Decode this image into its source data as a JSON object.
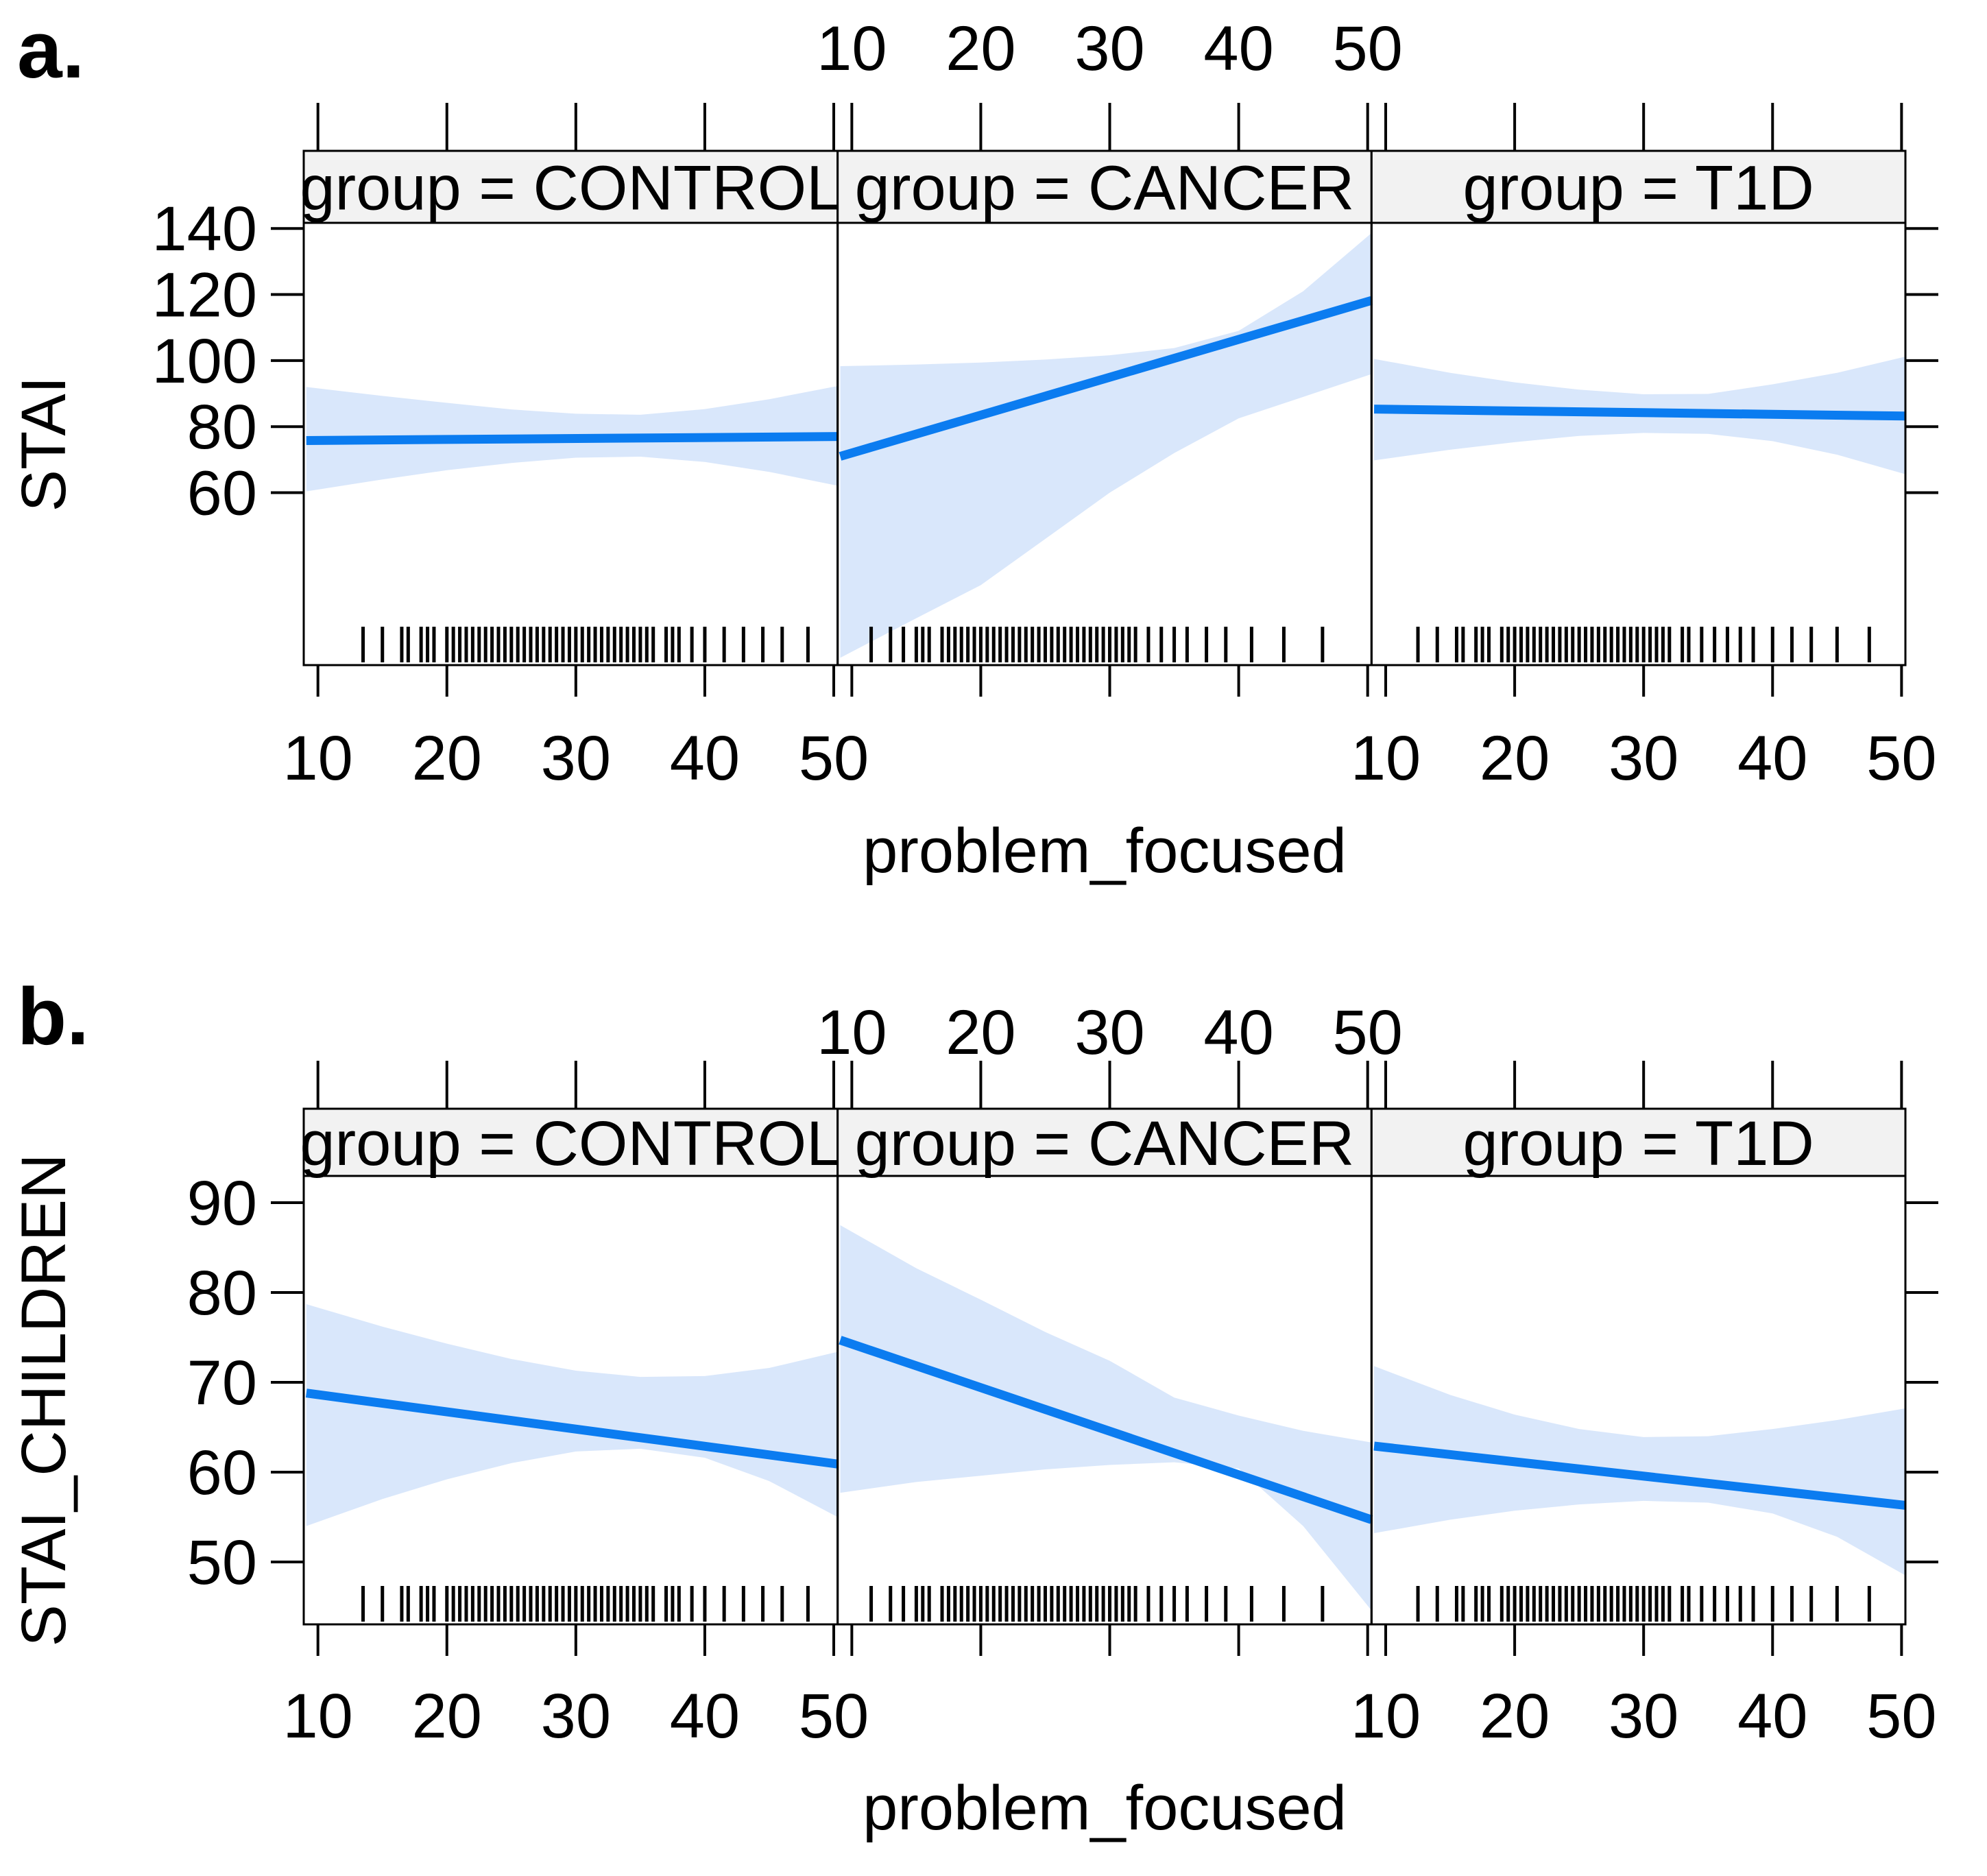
{
  "page": {
    "figure_a_label": "a.",
    "figure_b_label": "b."
  },
  "colors": {
    "line": "#0b7cf0",
    "band": "#d9e7fb",
    "strip_bg": "#f2f2f2",
    "border": "#000000",
    "text": "#000000"
  },
  "rugs": {
    "CONTROL": [
      13.5,
      15,
      16.5,
      17,
      18,
      18.5,
      19,
      20,
      20.5,
      21,
      21.5,
      22,
      22.5,
      23,
      23.5,
      24,
      24.5,
      25,
      25.5,
      26,
      26.5,
      27,
      27.5,
      28,
      28.5,
      29,
      29.5,
      30,
      30.5,
      31,
      31.5,
      32,
      32.5,
      33,
      33.5,
      34,
      34.5,
      35,
      35.5,
      36,
      37,
      37.5,
      38,
      39,
      40,
      41.5,
      43,
      44.5,
      46,
      48
    ],
    "CANCER": [
      11.5,
      13,
      14,
      15,
      15.5,
      16,
      17,
      17.5,
      18,
      18.5,
      19,
      19.5,
      20,
      20.5,
      21,
      21.5,
      22,
      22.5,
      23,
      23.5,
      24,
      24.5,
      25,
      25.5,
      26,
      26.5,
      27,
      27.5,
      28,
      28.5,
      29,
      29.5,
      30,
      30.5,
      31,
      31.5,
      32,
      33,
      34,
      35,
      36,
      37.5,
      39,
      41,
      43.5,
      46.5
    ],
    "T1D": [
      12.5,
      14,
      15.5,
      16,
      17,
      17.5,
      18,
      19,
      19.5,
      20,
      20.5,
      21,
      21.5,
      22,
      22.5,
      23,
      23.5,
      24,
      24.5,
      25,
      25.5,
      26,
      26.5,
      27,
      27.5,
      28,
      28.5,
      29,
      29.5,
      30,
      30.5,
      31,
      31.5,
      32,
      33,
      33.5,
      34.5,
      35.5,
      36.5,
      37.5,
      38.5,
      40,
      41.5,
      43,
      45,
      47.5
    ]
  },
  "chart_data": [
    {
      "type": "line",
      "panel_label": "a.",
      "ylabel": "STAI",
      "xlabel": "problem_focused",
      "y_ticks": [
        60,
        80,
        100,
        120,
        140
      ],
      "x_ticks": [
        10,
        20,
        30,
        40,
        50
      ],
      "ylim": [
        7.8,
        141.7
      ],
      "xlim": [
        8.9,
        50.3
      ],
      "grid": false,
      "legend": "none",
      "facets": [
        {
          "label": "group = CONTROL",
          "x_axis_labels": "bottom",
          "rug": "CONTROL",
          "line": {
            "x": [
              9.1,
              50.3
            ],
            "y": [
              75.8,
              77.0
            ]
          },
          "band": {
            "x": [
              9.1,
              15,
              20,
              25,
              30,
              35,
              40,
              45,
              50.3
            ],
            "upper": [
              92.0,
              89.3,
              87.2,
              85.2,
              83.9,
              83.6,
              85.3,
              88.3,
              92.3
            ],
            "lower": [
              60.4,
              64.0,
              66.8,
              69.0,
              70.6,
              70.9,
              69.3,
              66.3,
              62.1
            ]
          }
        },
        {
          "label": "group = CANCER",
          "x_axis_labels": "top",
          "rug": "CANCER",
          "line": {
            "x": [
              9.1,
              50.3
            ],
            "y": [
              71.0,
              118.2
            ]
          },
          "band": {
            "x": [
              9.1,
              15,
              20,
              25,
              30,
              35,
              40,
              45,
              50.3
            ],
            "upper": [
              98.3,
              98.8,
              99.4,
              100.3,
              101.6,
              103.8,
              109.0,
              121.0,
              138.6
            ],
            "lower": [
              10.0,
              22.0,
              32.0,
              46.0,
              60.0,
              72.0,
              82.5,
              89.0,
              95.9
            ]
          }
        },
        {
          "label": "group = T1D",
          "x_axis_labels": "bottom",
          "rug": "T1D",
          "line": {
            "x": [
              9.1,
              50.3
            ],
            "y": [
              85.3,
              83.2
            ]
          },
          "band": {
            "x": [
              9.1,
              15,
              20,
              25,
              30,
              35,
              40,
              45,
              50.3
            ],
            "upper": [
              100.5,
              96.3,
              93.4,
              91.2,
              89.8,
              89.9,
              92.8,
              96.3,
              101.2
            ],
            "lower": [
              69.8,
              73.0,
              75.3,
              77.2,
              78.1,
              77.8,
              75.6,
              71.5,
              65.6
            ]
          }
        }
      ]
    },
    {
      "type": "line",
      "panel_label": "b.",
      "ylabel": "STAI_CHILDREN",
      "xlabel": "problem_focused",
      "y_ticks": [
        50,
        60,
        70,
        80,
        90
      ],
      "x_ticks": [
        10,
        20,
        30,
        40,
        50
      ],
      "ylim": [
        43.05,
        92.98
      ],
      "xlim": [
        8.9,
        50.3
      ],
      "grid": false,
      "legend": "none",
      "facets": [
        {
          "label": "group = CONTROL",
          "x_axis_labels": "bottom",
          "rug": "CONTROL",
          "line": {
            "x": [
              9.1,
              50.3
            ],
            "y": [
              68.8,
              60.9
            ]
          },
          "band": {
            "x": [
              9.1,
              15,
              20,
              25,
              30,
              35,
              40,
              45,
              50.3
            ],
            "upper": [
              78.7,
              76.2,
              74.3,
              72.6,
              71.3,
              70.6,
              70.7,
              71.6,
              73.4
            ],
            "lower": [
              54.0,
              57.0,
              59.2,
              61.0,
              62.3,
              62.6,
              61.6,
              59.0,
              55.0
            ]
          }
        },
        {
          "label": "group = CANCER",
          "x_axis_labels": "top",
          "rug": "CANCER",
          "line": {
            "x": [
              9.1,
              50.3
            ],
            "y": [
              74.7,
              54.7
            ]
          },
          "band": {
            "x": [
              9.1,
              15,
              20,
              25,
              30,
              35,
              40,
              45,
              50.3
            ],
            "upper": [
              87.5,
              82.7,
              79.2,
              75.6,
              72.4,
              68.3,
              66.3,
              64.6,
              63.3
            ],
            "lower": [
              57.7,
              58.9,
              59.6,
              60.3,
              60.8,
              61.1,
              60.4,
              54.0,
              44.6
            ]
          }
        },
        {
          "label": "group = T1D",
          "x_axis_labels": "bottom",
          "rug": "T1D",
          "line": {
            "x": [
              9.1,
              50.3
            ],
            "y": [
              62.9,
              56.3
            ]
          },
          "band": {
            "x": [
              9.1,
              15,
              20,
              25,
              30,
              35,
              40,
              45,
              50.3
            ],
            "upper": [
              71.8,
              68.6,
              66.4,
              64.8,
              63.9,
              64.0,
              64.8,
              65.8,
              67.1
            ],
            "lower": [
              53.2,
              54.7,
              55.7,
              56.4,
              56.8,
              56.6,
              55.4,
              52.8,
              48.5
            ]
          }
        }
      ]
    }
  ]
}
